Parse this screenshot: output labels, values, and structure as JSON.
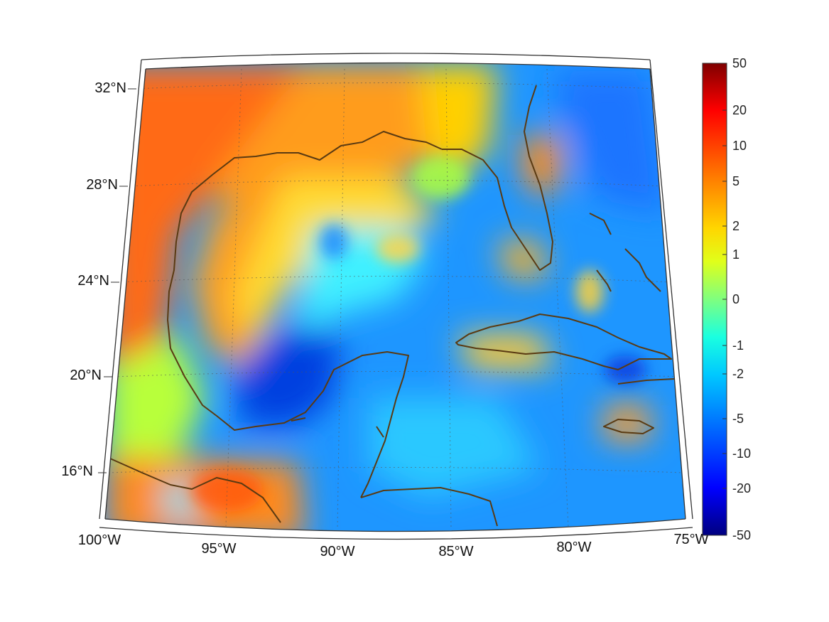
{
  "map": {
    "projection": "conic",
    "extent": {
      "lon_min": -100,
      "lon_max": -75,
      "lat_min": 14,
      "lat_max": 33
    },
    "lon_ticks": [
      "100°W",
      "95°W",
      "90°W",
      "85°W",
      "80°W",
      "75°W"
    ],
    "lat_ticks": [
      "32°N",
      "28°N",
      "24°N",
      "20°N",
      "16°N"
    ],
    "coastline_color": "#5a3a12",
    "grid": true
  },
  "colorbar": {
    "colormap": "jet",
    "scale": "symmetric-log",
    "labels": [
      "50",
      "20",
      "10",
      "5",
      "2",
      "1",
      "0",
      "-1",
      "-2",
      "-5",
      "-10",
      "-20",
      "-50"
    ]
  }
}
